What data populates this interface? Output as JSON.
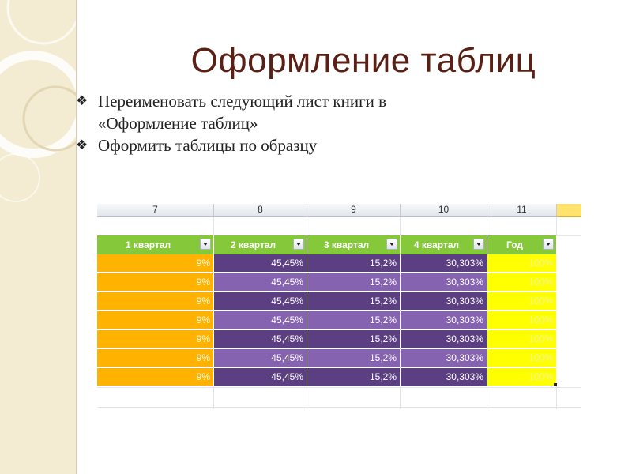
{
  "slide": {
    "title": "Оформление таблиц",
    "bullets": [
      {
        "icon": "diamond-bullet-icon",
        "lines": [
          "Переименовать следующий лист книги в",
          "«Оформление таблиц»"
        ]
      },
      {
        "icon": "diamond-bullet-icon",
        "lines": [
          "Оформить таблицы по образцу"
        ]
      }
    ]
  },
  "spreadsheet": {
    "column_headers": [
      "7",
      "8",
      "9",
      "10",
      "11"
    ],
    "table": {
      "headers": [
        "1 квартал",
        "2 квартал",
        "3 квартал",
        "4 квартал",
        "Год"
      ],
      "rows": [
        [
          "9%",
          "45,45%",
          "15,2%",
          "30,303%",
          "100%"
        ],
        [
          "9%",
          "45,45%",
          "15,2%",
          "30,303%",
          "100%"
        ],
        [
          "9%",
          "45,45%",
          "15,2%",
          "30,303%",
          "100%"
        ],
        [
          "9%",
          "45,45%",
          "15,2%",
          "30,303%",
          "100%"
        ],
        [
          "9%",
          "45,45%",
          "15,2%",
          "30,303%",
          "100%"
        ],
        [
          "9%",
          "45,45%",
          "15,2%",
          "30,303%",
          "100%"
        ],
        [
          "9%",
          "45,45%",
          "15,2%",
          "30,303%",
          "100%"
        ]
      ]
    },
    "colors": {
      "header_green": "#85c83a",
      "col1_orange": "#ffb300",
      "purple_dark": "#5c3f82",
      "purple_light": "#8563b0",
      "year_yellow": "#ffff00",
      "year_text": "#f2f2a0"
    }
  }
}
